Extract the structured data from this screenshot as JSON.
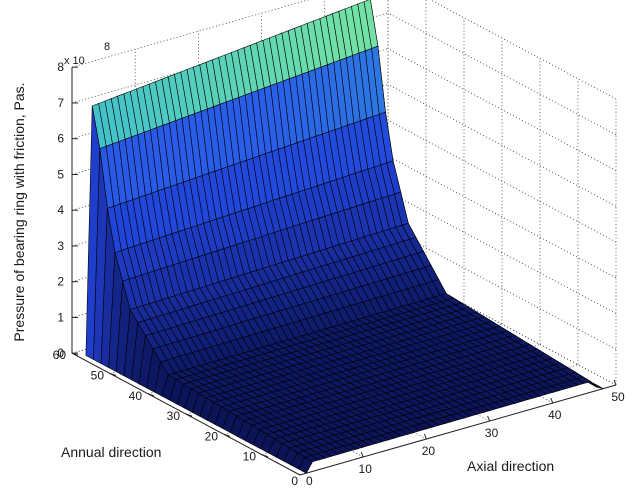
{
  "figure": {
    "background": "#ffffff",
    "exponent_base": "x 10",
    "exponent_power": "8"
  },
  "chart_data": {
    "type": "surface",
    "title": "",
    "zlabel": "Pressure of bearing ring with friction, Pas.",
    "xlabel": "Axial direction",
    "ylabel": "Annual direction",
    "xlim": [
      0,
      50
    ],
    "ylim": [
      0,
      60
    ],
    "zlim": [
      0,
      8
    ],
    "x_ticks": [
      10,
      20,
      30,
      40,
      50
    ],
    "y_ticks": [
      10,
      20,
      30,
      40,
      50,
      60
    ],
    "z_ticks": [
      0,
      1,
      2,
      3,
      4,
      5,
      6,
      7,
      8
    ],
    "z_multiplier": 100000000,
    "grid": true,
    "surface": {
      "x_extent": [
        1,
        48
      ],
      "y_extent": [
        0,
        58
      ],
      "description_profile_along_y": [
        {
          "y": 0,
          "z": 0.3
        },
        {
          "y": 38,
          "z": 0.6
        },
        {
          "y": 48,
          "z": 2.0
        },
        {
          "y": 53,
          "z": 3.9
        },
        {
          "y": 56,
          "z": 6.5
        },
        {
          "y": 58,
          "z": 7.7
        }
      ],
      "x_edge_profile": [
        {
          "x": 1,
          "factor": 0.0
        },
        {
          "x": 2,
          "factor": 0.9
        },
        {
          "x": 46,
          "factor": 1.0
        },
        {
          "x": 47,
          "factor": 0.3
        },
        {
          "x": 48,
          "factor": 0.0
        }
      ],
      "colormap": [
        {
          "z": 0.0,
          "color": "#0b1150"
        },
        {
          "z": 1.0,
          "color": "#10207a"
        },
        {
          "z": 2.0,
          "color": "#1a2fa6"
        },
        {
          "z": 3.6,
          "color": "#1f43d8"
        },
        {
          "z": 5.4,
          "color": "#2a5ee8"
        },
        {
          "z": 6.2,
          "color": "#33b7d6"
        },
        {
          "z": 7.0,
          "color": "#6fe0a8"
        },
        {
          "z": 8.0,
          "color": "#9cf08e"
        }
      ]
    }
  }
}
